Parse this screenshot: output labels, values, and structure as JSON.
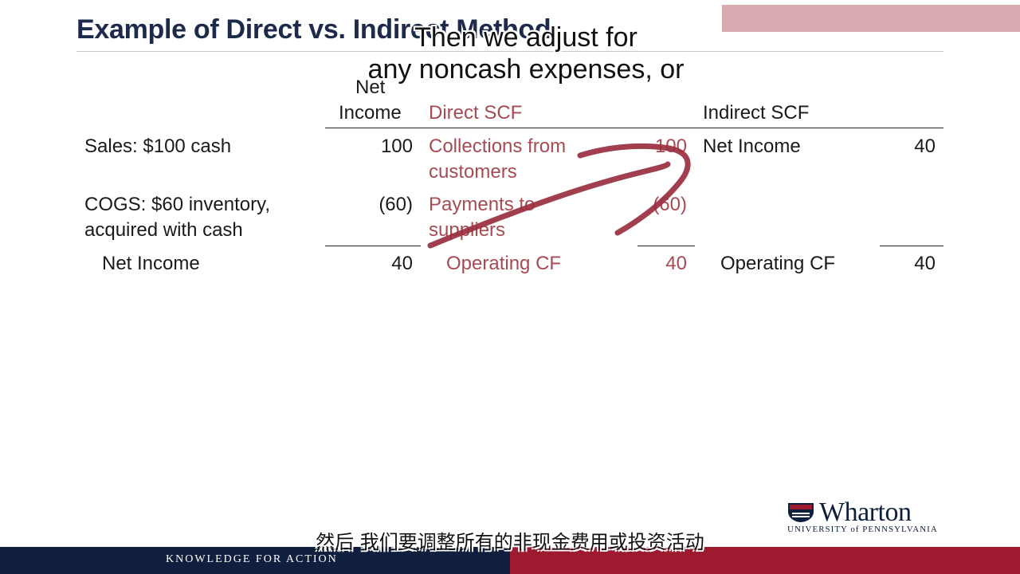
{
  "slide": {
    "title": "Example of Direct vs. Indirect Method",
    "caption_line1": "Then we adjust for",
    "caption_line2": "any noncash expenses, or",
    "caption_zh": "然后 我们要调整所有的非现金费用或投资活动"
  },
  "table": {
    "headers": {
      "net_income_line1": "Net",
      "net_income_line2": "Income",
      "direct": "Direct SCF",
      "indirect": "Indirect SCF"
    },
    "rows": [
      {
        "desc_line1": "Sales: $100 cash",
        "desc_line2": "",
        "amount": "100",
        "direct_line1": "Collections from",
        "direct_line2": "customers",
        "direct_amount": "100",
        "indirect_label": "Net Income",
        "indirect_amount": "40"
      },
      {
        "desc_line1": "COGS: $60 inventory,",
        "desc_line2": "acquired with cash",
        "amount": "(60)",
        "direct_line1": "Payments to",
        "direct_line2": "suppliers",
        "direct_amount": "(60)",
        "indirect_label": "",
        "indirect_amount": ""
      }
    ],
    "totals": {
      "label": "Net Income",
      "amount": "40",
      "direct_label": "Operating CF",
      "direct_amount": "40",
      "indirect_label": "Operating CF",
      "indirect_amount": "40"
    }
  },
  "footer": {
    "tagline": "KNOWLEDGE FOR ACTION",
    "logo_name": "Wharton",
    "logo_sub": "UNIVERSITY of PENNSYLVANIA"
  },
  "colors": {
    "navy": "#0f1f3d",
    "accent_red": "#a84a52",
    "footer_red": "#9e1b2f",
    "pen_stroke": "#9a2f3f"
  }
}
